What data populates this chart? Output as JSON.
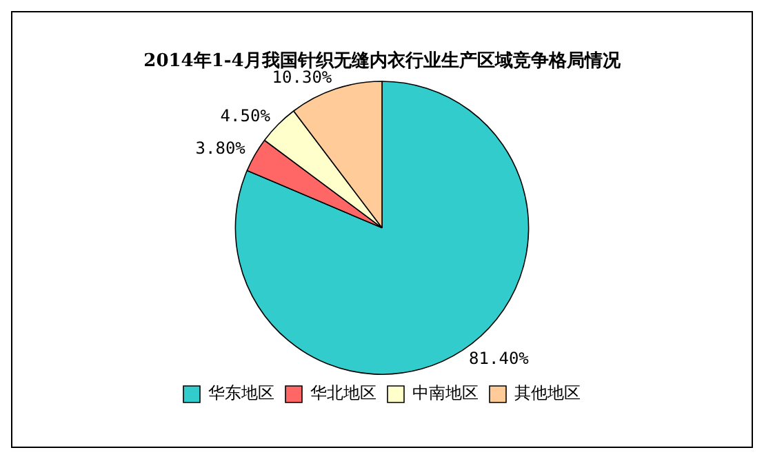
{
  "chart_data": {
    "type": "pie",
    "title": "2014年1-4月我国针织无缝内衣行业生产区域竞争格局情况",
    "categories": [
      "华东地区",
      "华北地区",
      "中南地区",
      "其他地区"
    ],
    "values": [
      81.4,
      3.8,
      4.5,
      10.3
    ],
    "value_labels": [
      "81.40%",
      "3.80%",
      "4.50%",
      "10.30%"
    ],
    "colors": [
      "#33cccc",
      "#ff6666",
      "#ffffcc",
      "#ffcc99"
    ],
    "legend": "bottom"
  }
}
